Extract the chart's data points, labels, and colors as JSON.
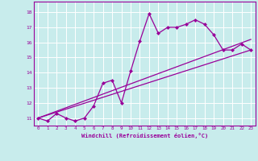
{
  "title": "",
  "xlabel": "Windchill (Refroidissement éolien,°C)",
  "bg_color": "#c8ecec",
  "grid_color": "#ffffff",
  "line_color": "#990099",
  "xlim": [
    -0.5,
    23.5
  ],
  "ylim": [
    10.5,
    18.7
  ],
  "xticks": [
    0,
    1,
    2,
    3,
    4,
    5,
    6,
    7,
    8,
    9,
    10,
    11,
    12,
    13,
    14,
    15,
    16,
    17,
    18,
    19,
    20,
    21,
    22,
    23
  ],
  "yticks": [
    11,
    12,
    13,
    14,
    15,
    16,
    17,
    18
  ],
  "main_x": [
    0,
    1,
    2,
    3,
    4,
    5,
    6,
    7,
    8,
    9,
    10,
    11,
    12,
    13,
    14,
    15,
    16,
    17,
    18,
    19,
    20,
    21,
    22,
    23
  ],
  "main_y": [
    11.0,
    10.8,
    11.3,
    11.0,
    10.8,
    11.0,
    11.8,
    13.3,
    13.5,
    12.0,
    14.1,
    16.1,
    17.9,
    16.6,
    17.0,
    17.0,
    17.2,
    17.5,
    17.2,
    16.5,
    15.5,
    15.5,
    15.9,
    15.5
  ],
  "line1_x": [
    0,
    23
  ],
  "line1_y": [
    11.0,
    15.5
  ],
  "line2_x": [
    0,
    23
  ],
  "line2_y": [
    11.0,
    16.2
  ],
  "markersize": 2.5,
  "linewidth": 0.9
}
